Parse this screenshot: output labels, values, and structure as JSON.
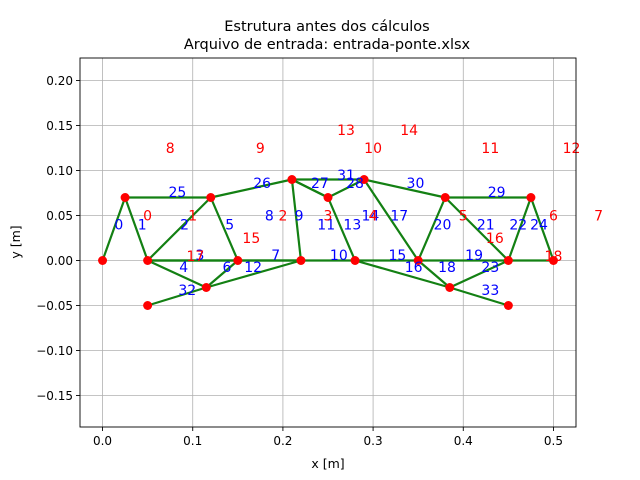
{
  "chart_data": {
    "type": "scatter",
    "title": "Estrutura antes dos cálculos",
    "subtitle": "Arquivo de entrada: entrada-ponte.xlsx",
    "xlabel": "x [m]",
    "ylabel": "y [m]",
    "xlim": [
      -0.025,
      0.525
    ],
    "ylim": [
      -0.185,
      0.225
    ],
    "xticks": [
      "0.0",
      "0.1",
      "0.2",
      "0.3",
      "0.4",
      "0.5"
    ],
    "xtick_values": [
      0.0,
      0.1,
      0.2,
      0.3,
      0.4,
      0.5
    ],
    "yticks": [
      "−0.15",
      "−0.10",
      "−0.05",
      "0.00",
      "0.05",
      "0.10",
      "0.15",
      "0.20"
    ],
    "ytick_values": [
      -0.15,
      -0.1,
      -0.05,
      0.0,
      0.05,
      0.1,
      0.15,
      0.2
    ],
    "grid": true,
    "colors": {
      "members": "#138013",
      "nodes": "#ff0000",
      "member_labels": "#0000ff",
      "node_labels": "#ff0000"
    },
    "nodes": [
      [
        0.0,
        0.0
      ],
      [
        0.025,
        0.07
      ],
      [
        0.05,
        0.0
      ],
      [
        0.12,
        0.07
      ],
      [
        0.15,
        0.0
      ],
      [
        0.21,
        0.09
      ],
      [
        0.22,
        0.0
      ],
      [
        0.25,
        0.07
      ],
      [
        0.28,
        0.0
      ],
      [
        0.29,
        0.09
      ],
      [
        0.35,
        0.0
      ],
      [
        0.38,
        0.07
      ],
      [
        0.45,
        0.0
      ],
      [
        0.475,
        0.07
      ],
      [
        0.5,
        0.0
      ],
      [
        0.05,
        -0.05
      ],
      [
        0.115,
        -0.03
      ],
      [
        0.385,
        -0.03
      ],
      [
        0.45,
        -0.05
      ]
    ],
    "members": [
      [
        0,
        1
      ],
      [
        1,
        2
      ],
      [
        2,
        3
      ],
      [
        1,
        3
      ],
      [
        2,
        4
      ],
      [
        3,
        4
      ],
      [
        4,
        16
      ],
      [
        4,
        6
      ],
      [
        3,
        5
      ],
      [
        5,
        6
      ],
      [
        6,
        8
      ],
      [
        5,
        7
      ],
      [
        7,
        8
      ],
      [
        7,
        9
      ],
      [
        8,
        10
      ],
      [
        9,
        10
      ],
      [
        10,
        17
      ],
      [
        10,
        11
      ],
      [
        9,
        11
      ],
      [
        11,
        12
      ],
      [
        11,
        13
      ],
      [
        12,
        13
      ],
      [
        12,
        14
      ],
      [
        13,
        14
      ],
      [
        2,
        16
      ],
      [
        15,
        16
      ],
      [
        6,
        16
      ],
      [
        5,
        9
      ],
      [
        5,
        7
      ],
      [
        8,
        17
      ],
      [
        17,
        18
      ],
      [
        2,
        6
      ],
      [
        12,
        17
      ],
      [
        10,
        12
      ]
    ],
    "member_labels": [
      {
        "text": "0",
        "x": 0.018,
        "y": 0.04
      },
      {
        "text": "1",
        "x": 0.044,
        "y": 0.04
      },
      {
        "text": "2",
        "x": 0.091,
        "y": 0.04
      },
      {
        "text": "25",
        "x": 0.083,
        "y": 0.076
      },
      {
        "text": "3",
        "x": 0.108,
        "y": 0.006
      },
      {
        "text": "4",
        "x": 0.09,
        "y": -0.007
      },
      {
        "text": "5",
        "x": 0.141,
        "y": 0.04
      },
      {
        "text": "6",
        "x": 0.138,
        "y": -0.007
      },
      {
        "text": "7",
        "x": 0.192,
        "y": 0.006
      },
      {
        "text": "8",
        "x": 0.185,
        "y": 0.05
      },
      {
        "text": "9",
        "x": 0.218,
        "y": 0.05
      },
      {
        "text": "26",
        "x": 0.177,
        "y": 0.086
      },
      {
        "text": "27",
        "x": 0.241,
        "y": 0.086
      },
      {
        "text": "31",
        "x": 0.27,
        "y": 0.095
      },
      {
        "text": "28",
        "x": 0.28,
        "y": 0.086
      },
      {
        "text": "11",
        "x": 0.248,
        "y": 0.04
      },
      {
        "text": "13",
        "x": 0.277,
        "y": 0.04
      },
      {
        "text": "14",
        "x": 0.297,
        "y": 0.05
      },
      {
        "text": "10",
        "x": 0.262,
        "y": 0.006
      },
      {
        "text": "15",
        "x": 0.327,
        "y": 0.006
      },
      {
        "text": "17",
        "x": 0.329,
        "y": 0.05
      },
      {
        "text": "16",
        "x": 0.345,
        "y": -0.007
      },
      {
        "text": "30",
        "x": 0.347,
        "y": 0.086
      },
      {
        "text": "20",
        "x": 0.377,
        "y": 0.04
      },
      {
        "text": "18",
        "x": 0.382,
        "y": -0.007
      },
      {
        "text": "19",
        "x": 0.412,
        "y": 0.006
      },
      {
        "text": "29",
        "x": 0.437,
        "y": 0.076
      },
      {
        "text": "21",
        "x": 0.425,
        "y": 0.04
      },
      {
        "text": "22",
        "x": 0.461,
        "y": 0.04
      },
      {
        "text": "24",
        "x": 0.484,
        "y": 0.04
      },
      {
        "text": "23",
        "x": 0.43,
        "y": -0.007
      },
      {
        "text": "12",
        "x": 0.167,
        "y": -0.007
      },
      {
        "text": "32",
        "x": 0.094,
        "y": -0.033
      },
      {
        "text": "33",
        "x": 0.43,
        "y": -0.033
      }
    ],
    "node_labels": [
      {
        "text": "0",
        "x": 0.05,
        "y": 0.05
      },
      {
        "text": "1",
        "x": 0.1,
        "y": 0.05
      },
      {
        "text": "2",
        "x": 0.2,
        "y": 0.05
      },
      {
        "text": "3",
        "x": 0.25,
        "y": 0.05
      },
      {
        "text": "4",
        "x": 0.3,
        "y": 0.05
      },
      {
        "text": "5",
        "x": 0.4,
        "y": 0.05
      },
      {
        "text": "6",
        "x": 0.5,
        "y": 0.05
      },
      {
        "text": "7",
        "x": 0.55,
        "y": 0.05
      },
      {
        "text": "8",
        "x": 0.075,
        "y": 0.125
      },
      {
        "text": "9",
        "x": 0.175,
        "y": 0.125
      },
      {
        "text": "10",
        "x": 0.3,
        "y": 0.125
      },
      {
        "text": "11",
        "x": 0.43,
        "y": 0.125
      },
      {
        "text": "12",
        "x": 0.52,
        "y": 0.125
      },
      {
        "text": "13",
        "x": 0.27,
        "y": 0.145
      },
      {
        "text": "14",
        "x": 0.34,
        "y": 0.145
      },
      {
        "text": "15",
        "x": 0.165,
        "y": 0.025
      },
      {
        "text": "16",
        "x": 0.435,
        "y": 0.025
      },
      {
        "text": "17",
        "x": 0.103,
        "y": 0.005
      },
      {
        "text": "18",
        "x": 0.5,
        "y": 0.005
      }
    ]
  }
}
